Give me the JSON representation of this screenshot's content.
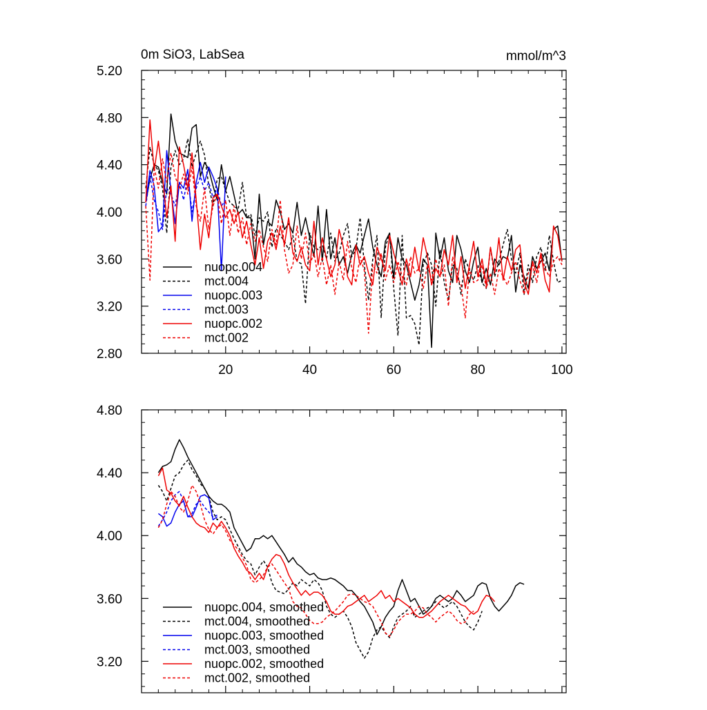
{
  "chart_data": [
    {
      "type": "line",
      "title_left": "0m SiO3, LabSea",
      "title_right": "mmol/m^3",
      "xlabel": "",
      "ylabel": "",
      "xlim": [
        0,
        101
      ],
      "ylim": [
        2.8,
        5.2
      ],
      "xticks": [
        20,
        40,
        60,
        80,
        100
      ],
      "xtick_labels": [
        "20",
        "40",
        "60",
        "80",
        "100"
      ],
      "yticks": [
        2.8,
        3.2,
        3.6,
        4.0,
        4.4,
        4.8,
        5.2
      ],
      "ytick_labels": [
        "2.80",
        "3.20",
        "3.60",
        "4.00",
        "4.40",
        "4.80",
        "5.20"
      ],
      "legend_position": "bottom-left",
      "series": [
        {
          "name": "nuopc.004",
          "color": "#000000",
          "dash": "solid",
          "x_start": 1,
          "values": [
            4.08,
            4.28,
            4.4,
            4.38,
            4.25,
            4.15,
            4.83,
            4.6,
            4.5,
            4.48,
            4.46,
            4.71,
            4.74,
            4.3,
            4.42,
            4.36,
            4.22,
            4.1,
            4.4,
            4.18,
            4.3,
            4.14,
            3.98,
            4.02,
            3.95,
            3.95,
            3.6,
            4.15,
            3.72,
            3.92,
            3.88,
            4.1,
            4.0,
            3.85,
            3.9,
            3.82,
            4.08,
            3.8,
            3.95,
            3.78,
            3.62,
            4.05,
            3.58,
            4.02,
            3.6,
            3.78,
            3.55,
            3.62,
            3.48,
            3.64,
            3.72,
            3.65,
            3.8,
            3.94,
            3.7,
            3.55,
            3.45,
            3.75,
            3.82,
            3.44,
            3.78,
            3.6,
            3.55,
            3.4,
            3.25,
            3.38,
            3.6,
            3.55,
            2.85,
            3.82,
            3.6,
            3.78,
            3.5,
            3.4,
            3.8,
            3.68,
            3.5,
            3.4,
            3.58,
            3.7,
            3.4,
            3.52,
            3.38,
            3.6,
            3.55,
            3.62,
            3.6,
            3.8,
            3.32,
            3.55,
            3.45,
            3.35,
            3.62,
            3.52,
            3.58,
            3.65,
            3.5,
            3.85,
            3.88,
            3.58
          ]
        },
        {
          "name": "mct.004",
          "color": "#000000",
          "dash": "dashed",
          "x_start": 1,
          "values": [
            4.2,
            4.55,
            4.4,
            4.35,
            4.2,
            3.82,
            4.38,
            4.52,
            4.4,
            4.45,
            4.62,
            4.38,
            4.5,
            4.6,
            4.48,
            4.22,
            4.05,
            4.28,
            4.3,
            4.18,
            4.08,
            4.05,
            4.02,
            4.25,
            3.95,
            3.98,
            3.8,
            3.95,
            3.92,
            4.0,
            3.7,
            3.86,
            3.8,
            3.75,
            3.68,
            3.8,
            3.58,
            3.56,
            3.22,
            3.82,
            3.7,
            3.68,
            3.72,
            3.6,
            3.82,
            3.58,
            3.65,
            3.8,
            3.9,
            3.62,
            3.68,
            3.95,
            3.55,
            3.25,
            3.6,
            3.8,
            3.1,
            3.7,
            3.82,
            3.35,
            2.95,
            3.8,
            3.1,
            3.12,
            3.05,
            2.87,
            3.55,
            3.65,
            3.55,
            3.2,
            3.68,
            3.4,
            3.25,
            3.55,
            3.52,
            3.3,
            3.6,
            3.5,
            3.42,
            3.55,
            3.4,
            3.35,
            3.7,
            3.45,
            3.58,
            3.72,
            3.85,
            3.6,
            3.48,
            3.65,
            3.3,
            3.55,
            3.4,
            3.62,
            3.7,
            3.5,
            3.8,
            3.58,
            3.4,
            3.42
          ]
        },
        {
          "name": "nuopc.003",
          "color": "#0000ee",
          "dash": "solid",
          "x_start": 1,
          "values": [
            4.08,
            4.35,
            4.22,
            3.83,
            3.88,
            4.52,
            4.18,
            3.9,
            4.25,
            4.2,
            4.36,
            3.92,
            4.25,
            4.42,
            4.25,
            4.38,
            4.3,
            4.2,
            3.5,
            4.3
          ]
        },
        {
          "name": "mct.003",
          "color": "#0000ee",
          "dash": "dashed",
          "x_start": 1,
          "values": [
            4.05,
            4.3,
            4.1,
            4.0,
            3.85,
            4.2,
            4.15,
            4.05,
            4.25,
            4.1,
            4.3,
            4.0,
            4.2,
            4.3,
            4.18,
            4.25,
            4.12,
            4.2,
            4.05,
            4.1
          ]
        },
        {
          "name": "nuopc.002",
          "color": "#ee0000",
          "dash": "solid",
          "x_start": 1,
          "values": [
            4.08,
            4.78,
            4.35,
            4.6,
            4.3,
            3.95,
            4.22,
            3.75,
            4.55,
            4.4,
            4.2,
            4.5,
            4.1,
            3.68,
            3.98,
            3.78,
            4.12,
            4.15,
            4.05,
            3.95,
            4.02,
            3.9,
            4.0,
            3.78,
            3.92,
            3.72,
            3.55,
            3.78,
            3.52,
            3.75,
            3.82,
            3.68,
            3.88,
            3.72,
            3.95,
            3.65,
            3.58,
            3.7,
            3.55,
            3.5,
            3.92,
            3.55,
            3.78,
            3.6,
            3.45,
            3.55,
            3.85,
            3.7,
            3.45,
            3.38,
            3.72,
            3.55,
            3.62,
            3.48,
            3.38,
            3.7,
            3.6,
            3.5,
            3.8,
            3.65,
            3.52,
            3.38,
            3.6,
            3.45,
            3.7,
            3.5,
            3.78,
            3.62,
            3.38,
            3.52,
            3.45,
            3.68,
            3.55,
            3.8,
            3.4,
            3.62,
            3.35,
            3.55,
            3.75,
            3.45,
            3.6,
            3.38,
            3.7,
            3.48,
            3.78,
            3.42,
            3.62,
            3.5,
            3.68,
            3.72,
            3.4,
            3.3,
            3.58,
            3.48,
            3.65,
            3.42,
            3.32,
            3.88,
            3.8,
            3.58
          ]
        },
        {
          "name": "mct.002",
          "color": "#ee0000",
          "dash": "dashed",
          "x_start": 1,
          "values": [
            4.05,
            3.42,
            4.38,
            4.2,
            4.45,
            4.25,
            4.5,
            4.3,
            4.2,
            4.32,
            4.15,
            4.38,
            4.05,
            3.92,
            4.2,
            3.85,
            4.05,
            4.15,
            3.9,
            4.1,
            3.8,
            4.05,
            3.82,
            3.95,
            3.72,
            3.9,
            3.75,
            3.85,
            3.7,
            3.58,
            3.85,
            3.72,
            4.1,
            3.68,
            3.48,
            3.55,
            3.88,
            3.6,
            3.82,
            3.55,
            3.65,
            3.45,
            3.62,
            3.38,
            3.55,
            3.3,
            3.58,
            3.42,
            3.75,
            3.52,
            3.4,
            3.62,
            3.5,
            2.97,
            3.55,
            3.48,
            3.65,
            3.42,
            3.55,
            3.4,
            3.58,
            3.45,
            3.38,
            3.62,
            3.48,
            3.52,
            3.35,
            3.55,
            3.42,
            3.6,
            3.45,
            3.55,
            3.2,
            3.62,
            3.45,
            3.38,
            3.1,
            3.52,
            3.4,
            3.42,
            3.55,
            3.35,
            3.48,
            3.3,
            3.52,
            3.45,
            3.38,
            3.48,
            3.58,
            3.42,
            3.3,
            3.48,
            3.55,
            3.4,
            3.62,
            3.52,
            3.45,
            3.58,
            3.62,
            3.55
          ]
        }
      ]
    },
    {
      "type": "line",
      "title_left": "",
      "title_right": "",
      "xlabel": "",
      "ylabel": "",
      "xlim": [
        0,
        101
      ],
      "ylim": [
        3.0,
        4.8
      ],
      "xticks": [
        20,
        40,
        60,
        80,
        100
      ],
      "yticks": [
        3.2,
        3.6,
        4.0,
        4.4,
        4.8
      ],
      "ytick_labels": [
        "3.20",
        "3.60",
        "4.00",
        "4.40",
        "4.80"
      ],
      "legend_position": "bottom-left",
      "series": [
        {
          "name": "nuopc.004, smoothed",
          "color": "#000000",
          "dash": "solid",
          "x_start": 4,
          "values": [
            4.4,
            4.44,
            4.45,
            4.47,
            4.55,
            4.61,
            4.56,
            4.5,
            4.45,
            4.4,
            4.35,
            4.3,
            4.25,
            4.22,
            4.2,
            4.2,
            4.18,
            4.15,
            4.05,
            4.0,
            3.95,
            3.9,
            3.92,
            3.98,
            3.98,
            4.0,
            3.98,
            4.0,
            3.96,
            3.92,
            3.88,
            3.83,
            3.86,
            3.82,
            3.8,
            3.77,
            3.75,
            3.76,
            3.73,
            3.72,
            3.72,
            3.73,
            3.72,
            3.7,
            3.68,
            3.65,
            3.65,
            3.62,
            3.58,
            3.55,
            3.5,
            3.45,
            3.37,
            3.42,
            3.48,
            3.52,
            3.55,
            3.65,
            3.72,
            3.65,
            3.58,
            3.6,
            3.55,
            3.5,
            3.52,
            3.55,
            3.6,
            3.62,
            3.6,
            3.58,
            3.6,
            3.65,
            3.62,
            3.58,
            3.6,
            3.62,
            3.68,
            3.7,
            3.69,
            3.6,
            3.55,
            3.52,
            3.55,
            3.58,
            3.62,
            3.68,
            3.7,
            3.69
          ]
        },
        {
          "name": "mct.004, smoothed",
          "color": "#000000",
          "dash": "dashed",
          "x_start": 4,
          "values": [
            4.32,
            4.28,
            4.22,
            4.3,
            4.38,
            4.4,
            4.45,
            4.48,
            4.42,
            4.38,
            4.33,
            4.3,
            4.25,
            4.15,
            4.1,
            4.12,
            4.1,
            4.04,
            3.98,
            3.93,
            3.88,
            3.84,
            3.82,
            3.75,
            3.8,
            3.84,
            3.8,
            3.7,
            3.65,
            3.64,
            3.63,
            3.66,
            3.7,
            3.68,
            3.72,
            3.7,
            3.68,
            3.72,
            3.7,
            3.65,
            3.55,
            3.5,
            3.48,
            3.5,
            3.52,
            3.48,
            3.42,
            3.32,
            3.27,
            3.22,
            3.26,
            3.35,
            3.4,
            3.42,
            3.38,
            3.35,
            3.42,
            3.48,
            3.5,
            3.52,
            3.55,
            3.48,
            3.5,
            3.52,
            3.54,
            3.55,
            3.58,
            3.56,
            3.54,
            3.56,
            3.58,
            3.55,
            3.5,
            3.45,
            3.42,
            3.4,
            3.45,
            3.52
          ]
        },
        {
          "name": "nuopc.003, smoothed",
          "color": "#0000ee",
          "dash": "solid",
          "x_start": 4,
          "values": [
            4.14,
            4.12,
            4.06,
            4.08,
            4.15,
            4.2,
            4.22,
            4.12,
            4.12,
            4.18,
            4.25,
            4.26,
            4.24,
            4.1,
            4.12
          ]
        },
        {
          "name": "mct.003, smoothed",
          "color": "#0000ee",
          "dash": "dashed",
          "x_start": 4,
          "values": [
            4.06,
            4.1,
            4.15,
            4.22,
            4.26,
            4.28,
            4.22,
            4.12,
            4.14,
            4.2,
            4.22,
            4.18,
            4.15,
            4.12,
            4.13
          ]
        },
        {
          "name": "nuopc.002, smoothed",
          "color": "#ee0000",
          "dash": "solid",
          "x_start": 4,
          "values": [
            4.38,
            4.43,
            4.29,
            4.27,
            4.22,
            4.19,
            4.25,
            4.18,
            4.12,
            4.08,
            4.06,
            4.05,
            4.02,
            4.08,
            4.05,
            4.09,
            4.05,
            4.0,
            3.92,
            3.87,
            3.83,
            3.78,
            3.76,
            3.72,
            3.76,
            3.72,
            3.8,
            3.85,
            3.88,
            3.87,
            3.82,
            3.75,
            3.7,
            3.66,
            3.62,
            3.65,
            3.62,
            3.64,
            3.64,
            3.62,
            3.58,
            3.52,
            3.5,
            3.5,
            3.52,
            3.55,
            3.56,
            3.58,
            3.6,
            3.62,
            3.58,
            3.6,
            3.62,
            3.65,
            3.6,
            3.62,
            3.58,
            3.6,
            3.58,
            3.56,
            3.54,
            3.5,
            3.48,
            3.48,
            3.5,
            3.52,
            3.55,
            3.58,
            3.6,
            3.62,
            3.6,
            3.58,
            3.56,
            3.55,
            3.52,
            3.5,
            3.52,
            3.58,
            3.62,
            3.61,
            3.58
          ]
        },
        {
          "name": "mct.002, smoothed",
          "color": "#ee0000",
          "dash": "dashed",
          "x_start": 4,
          "values": [
            4.05,
            4.1,
            4.2,
            4.28,
            4.25,
            4.18,
            4.15,
            4.22,
            4.32,
            4.28,
            4.2,
            4.1,
            4.04,
            4.01,
            4.05,
            4.07,
            4.03,
            3.97,
            3.94,
            3.91,
            3.86,
            3.81,
            3.72,
            3.7,
            3.72,
            3.75,
            3.8,
            3.82,
            3.78,
            3.74,
            3.7,
            3.66,
            3.58,
            3.55,
            3.54,
            3.5,
            3.46,
            3.44,
            3.44,
            3.45,
            3.48,
            3.5,
            3.52,
            3.55,
            3.58,
            3.62,
            3.63,
            3.62,
            3.6,
            3.58,
            3.57,
            3.55,
            3.5,
            3.45,
            3.38,
            3.36,
            3.4,
            3.45,
            3.48,
            3.5,
            3.5,
            3.52,
            3.55,
            3.54,
            3.5,
            3.48,
            3.45,
            3.48,
            3.5,
            3.52,
            3.5,
            3.46,
            3.44,
            3.45,
            3.5,
            3.52
          ]
        }
      ]
    }
  ]
}
